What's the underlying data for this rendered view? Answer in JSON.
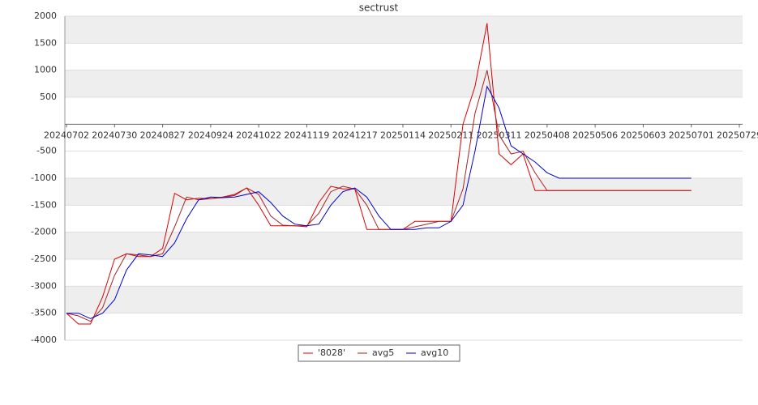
{
  "chart_data": {
    "type": "line",
    "title": "sectrust",
    "categories": [
      "20240702",
      null,
      null,
      null,
      "20240730",
      null,
      null,
      null,
      "20240827",
      null,
      null,
      null,
      "20240924",
      null,
      null,
      null,
      "20241022",
      null,
      null,
      null,
      "20241119",
      null,
      null,
      null,
      "20241217",
      null,
      null,
      null,
      "20250114",
      null,
      null,
      null,
      "20250211",
      null,
      null,
      null,
      "20250311",
      null,
      null,
      null,
      "20250408",
      null,
      null,
      null,
      "20250506",
      null,
      null,
      null,
      "20250603",
      null,
      null,
      null,
      "20250701",
      null,
      null,
      null,
      "20250729"
    ],
    "series": [
      {
        "name": "'8028'",
        "color": "#dd0000",
        "values": [
          -3500,
          -3700,
          -3700,
          -3200,
          -2500,
          -2400,
          -2450,
          -2450,
          -2300,
          -1280,
          -1400,
          -1370,
          -1380,
          -1350,
          -1300,
          -1180,
          -1500,
          -1880,
          -1880,
          -1880,
          -1900,
          -1450,
          -1150,
          -1200,
          -1200,
          -1950,
          -1950,
          -1950,
          -1950,
          -1800,
          -1800,
          -1800,
          -1800,
          0,
          700,
          1870,
          -550,
          -750,
          -550,
          -1230,
          -1230,
          -1230,
          -1230,
          -1230,
          -1230,
          -1230,
          -1230,
          -1230,
          -1230,
          -1230,
          -1230,
          -1230,
          -1230,
          null,
          null,
          null,
          null
        ]
      },
      {
        "name": "avg5",
        "color": "#aa2222",
        "values": [
          -3500,
          -3550,
          -3650,
          -3400,
          -2800,
          -2400,
          -2420,
          -2450,
          -2400,
          -1900,
          -1350,
          -1400,
          -1380,
          -1360,
          -1320,
          -1180,
          -1300,
          -1700,
          -1870,
          -1880,
          -1880,
          -1650,
          -1250,
          -1150,
          -1200,
          -1500,
          -1950,
          -1950,
          -1950,
          -1900,
          -1850,
          -1800,
          -1800,
          -1200,
          200,
          1000,
          -200,
          -550,
          -500,
          -900,
          -1230,
          -1230,
          -1230,
          -1230,
          -1230,
          -1230,
          -1230,
          -1230,
          -1230,
          -1230,
          -1230,
          -1230,
          -1230,
          null,
          null,
          null,
          null
        ]
      },
      {
        "name": "avg10",
        "color": "#0000cc",
        "values": [
          -3500,
          -3500,
          -3600,
          -3500,
          -3250,
          -2700,
          -2400,
          -2420,
          -2450,
          -2200,
          -1750,
          -1400,
          -1350,
          -1360,
          -1350,
          -1300,
          -1250,
          -1450,
          -1700,
          -1850,
          -1880,
          -1850,
          -1500,
          -1250,
          -1180,
          -1350,
          -1700,
          -1950,
          -1950,
          -1950,
          -1920,
          -1920,
          -1800,
          -1500,
          -500,
          700,
          300,
          -400,
          -550,
          -700,
          -900,
          -1000,
          -1000,
          -1000,
          -1000,
          -1000,
          -1000,
          -1000,
          -1000,
          -1000,
          -1000,
          -1000,
          -1000,
          null,
          null,
          null,
          null
        ]
      }
    ],
    "ylim": [
      -4000,
      2000
    ],
    "yticks": [
      2000,
      1500,
      1000,
      500,
      -500,
      -1000,
      -1500,
      -2000,
      -2500,
      -3000,
      -3500,
      -4000
    ],
    "grid": true
  }
}
